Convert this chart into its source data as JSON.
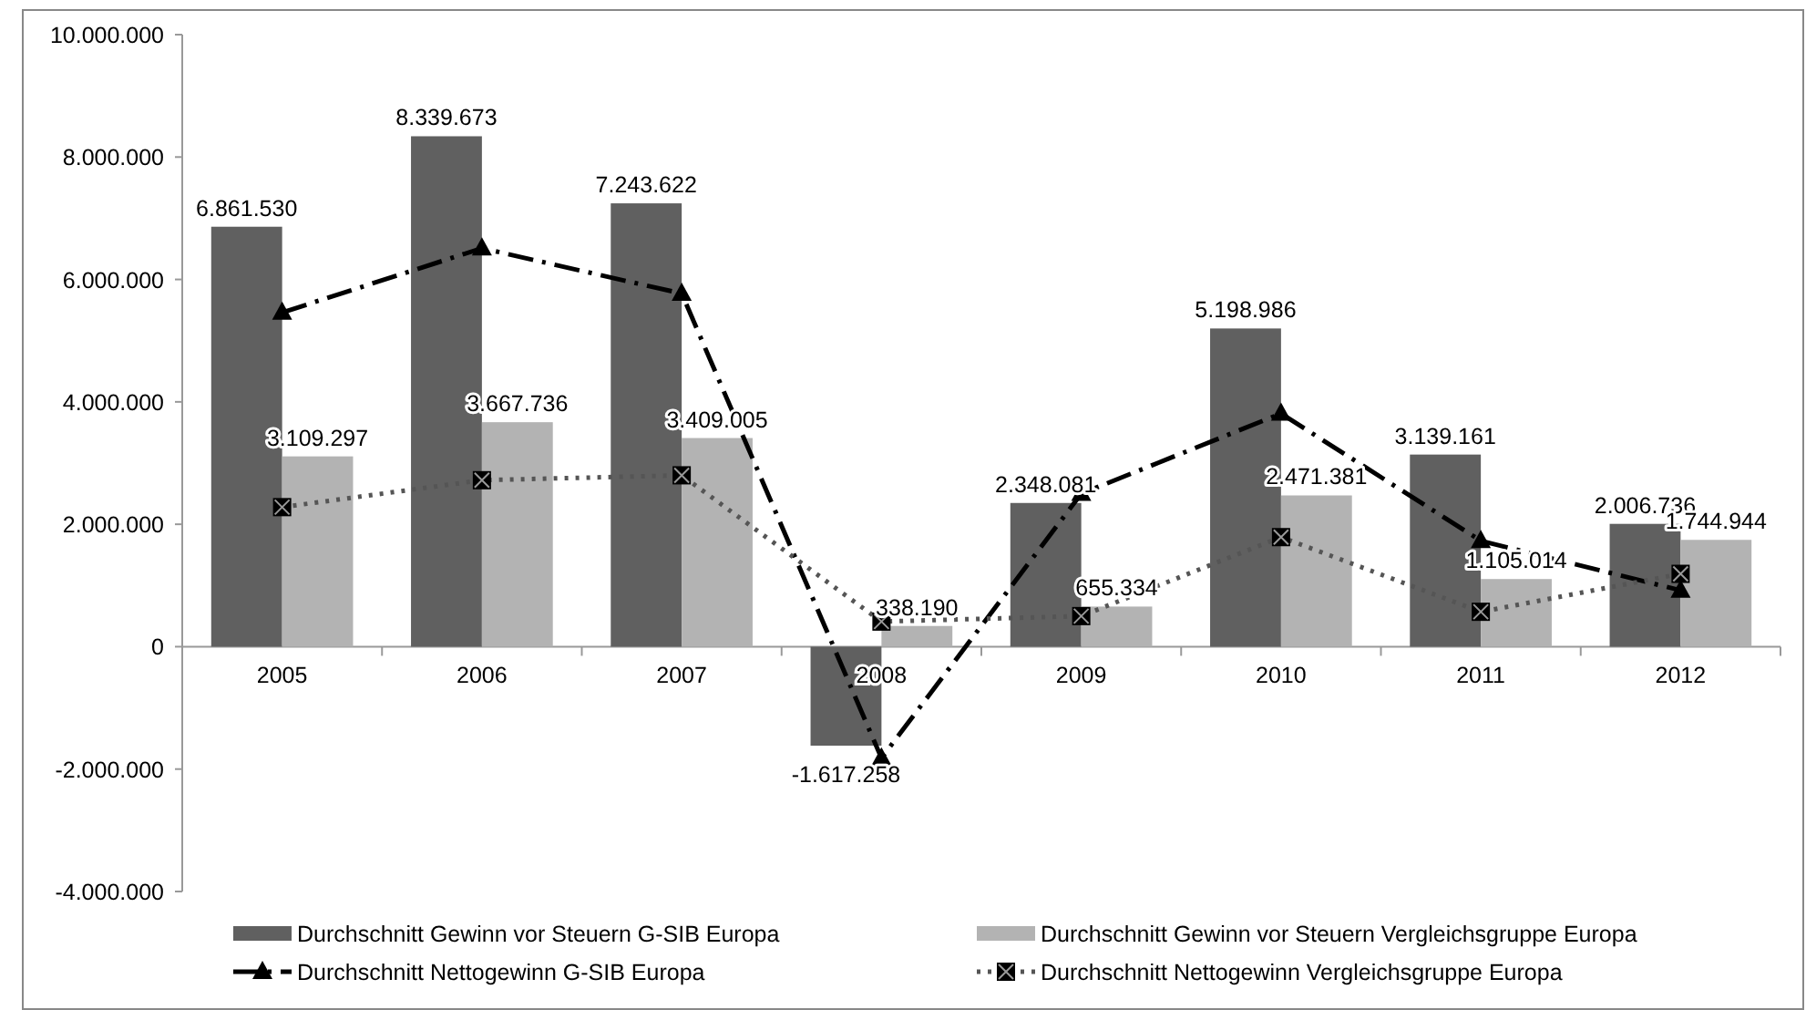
{
  "chart_data": {
    "type": "bar",
    "categories": [
      "2005",
      "2006",
      "2007",
      "2008",
      "2009",
      "2010",
      "2011",
      "2012"
    ],
    "series": [
      {
        "name": "Durchschnitt Gewinn vor Steuern G-SIB Europa",
        "color": "#606060",
        "values": [
          6861530,
          8339673,
          7243622,
          -1617258,
          2348081,
          5198986,
          3139161,
          2006736
        ],
        "value_labels": [
          "6.861.530",
          "8.339.673",
          "7.243.622",
          "-1.617.258",
          "2.348.081",
          "5.198.986",
          "3.139.161",
          "2.006.736"
        ]
      },
      {
        "name": "Durchschnitt Gewinn vor Steuern Vergleichsgruppe Europa",
        "color": "#b3b3b3",
        "values": [
          3109297,
          3667736,
          3409005,
          338190,
          655334,
          2471381,
          1105014,
          1744944
        ],
        "value_labels": [
          "3.109.297",
          "3.667.736",
          "3.409.005",
          "338.190",
          "655.334",
          "2.471.381",
          "1.105.014",
          "1.744.944"
        ]
      },
      {
        "name": "Durchschnitt Nettogewinn G-SIB Europa",
        "type": "line",
        "color": "#000000",
        "marker": "triangle",
        "line_style": "dashed",
        "values": [
          5460000,
          6510000,
          5770000,
          -1820000,
          2500000,
          3810000,
          1730000,
          920000
        ]
      },
      {
        "name": "Durchschnitt Nettogewinn Vergleichsgruppe Europa",
        "type": "line",
        "color": "#555555",
        "marker": "cross",
        "line_style": "dotted",
        "values": [
          2280000,
          2720000,
          2800000,
          410000,
          500000,
          1790000,
          570000,
          1190000
        ]
      }
    ],
    "ylim": [
      -4000000,
      10000000
    ],
    "yticks": [
      {
        "value": -4000000,
        "label": "-4.000.000"
      },
      {
        "value": -2000000,
        "label": "-2.000.000"
      },
      {
        "value": 0,
        "label": "0"
      },
      {
        "value": 2000000,
        "label": "2.000.000"
      },
      {
        "value": 4000000,
        "label": "4.000.000"
      },
      {
        "value": 6000000,
        "label": "6.000.000"
      },
      {
        "value": 8000000,
        "label": "8.000.000"
      },
      {
        "value": 10000000,
        "label": "10.000.000"
      }
    ],
    "grid": false,
    "legend": "bottom"
  }
}
